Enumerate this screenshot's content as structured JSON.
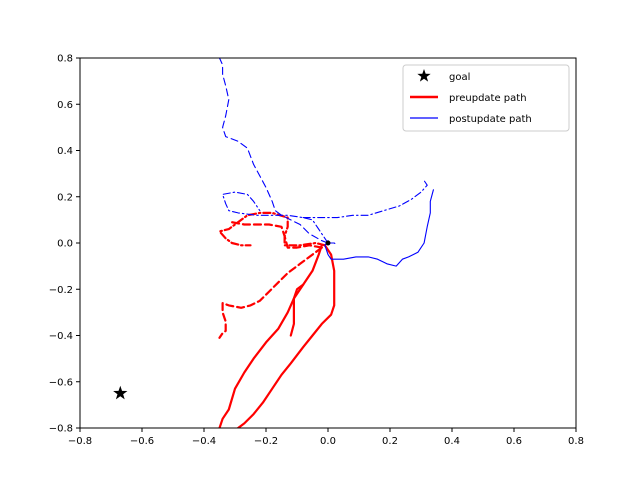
{
  "chart_data": {
    "type": "line",
    "title": "",
    "xlabel": "",
    "ylabel": "",
    "xlim": [
      -0.8,
      0.8
    ],
    "ylim": [
      -0.8,
      0.8
    ],
    "xticks": [
      -0.8,
      -0.6,
      -0.4,
      -0.2,
      0.0,
      0.2,
      0.4,
      0.6,
      0.8
    ],
    "yticks": [
      -0.8,
      -0.6,
      -0.4,
      -0.2,
      0.0,
      0.2,
      0.4,
      0.6,
      0.8
    ],
    "xtick_labels": [
      "−0.8",
      "−0.6",
      "−0.4",
      "−0.2",
      "0.0",
      "0.2",
      "0.4",
      "0.6",
      "0.8"
    ],
    "ytick_labels": [
      "−0.8",
      "−0.6",
      "−0.4",
      "−0.2",
      "0.0",
      "0.2",
      "0.4",
      "0.6",
      "0.8"
    ],
    "grid": false,
    "legend_position": "top-right",
    "legend": [
      {
        "label": "goal",
        "marker": "star",
        "color": "#000000"
      },
      {
        "label": "preupdate path",
        "style": "solid",
        "color": "#ff0000",
        "width": "thick"
      },
      {
        "label": "postupdate path",
        "style": "solid",
        "color": "#0000ff",
        "width": "thin"
      }
    ],
    "goal": {
      "x": -0.67,
      "y": -0.65
    },
    "start": {
      "x": 0.0,
      "y": 0.0
    },
    "series": [
      {
        "color": "#ff0000",
        "dash": "solid",
        "group": "preupdate",
        "points": [
          [
            -0.02,
            -0.01
          ],
          [
            -0.03,
            -0.05
          ],
          [
            -0.05,
            -0.12
          ],
          [
            -0.08,
            -0.18
          ],
          [
            -0.11,
            -0.24
          ],
          [
            -0.13,
            -0.3
          ],
          [
            -0.16,
            -0.37
          ],
          [
            -0.2,
            -0.43
          ],
          [
            -0.24,
            -0.5
          ],
          [
            -0.27,
            -0.56
          ],
          [
            -0.3,
            -0.63
          ],
          [
            -0.32,
            -0.72
          ],
          [
            -0.34,
            -0.76
          ],
          [
            -0.35,
            -0.8
          ]
        ]
      },
      {
        "color": "#ff0000",
        "dash": "solid",
        "group": "preupdate",
        "points": [
          [
            -0.01,
            -0.01
          ],
          [
            0.01,
            -0.05
          ],
          [
            0.02,
            -0.12
          ],
          [
            0.02,
            -0.2
          ],
          [
            0.02,
            -0.27
          ],
          [
            0.01,
            -0.31
          ],
          [
            -0.02,
            -0.35
          ],
          [
            -0.05,
            -0.4
          ],
          [
            -0.08,
            -0.45
          ],
          [
            -0.12,
            -0.52
          ],
          [
            -0.15,
            -0.57
          ],
          [
            -0.18,
            -0.63
          ],
          [
            -0.21,
            -0.69
          ],
          [
            -0.24,
            -0.74
          ],
          [
            -0.27,
            -0.78
          ],
          [
            -0.29,
            -0.8
          ]
        ]
      },
      {
        "color": "#ff0000",
        "dash": "solid",
        "group": "preupdate",
        "points": [
          [
            -0.08,
            -0.18
          ],
          [
            -0.1,
            -0.2
          ],
          [
            -0.11,
            -0.24
          ],
          [
            -0.11,
            -0.3
          ],
          [
            -0.11,
            -0.35
          ],
          [
            -0.12,
            -0.4
          ]
        ]
      },
      {
        "color": "#ff0000",
        "dash": "dashed",
        "group": "preupdate",
        "points": [
          [
            -0.02,
            -0.02
          ],
          [
            -0.05,
            -0.05
          ],
          [
            -0.09,
            -0.09
          ],
          [
            -0.13,
            -0.13
          ],
          [
            -0.16,
            -0.17
          ],
          [
            -0.19,
            -0.21
          ],
          [
            -0.22,
            -0.25
          ],
          [
            -0.25,
            -0.27
          ],
          [
            -0.28,
            -0.28
          ],
          [
            -0.32,
            -0.27
          ],
          [
            -0.34,
            -0.26
          ],
          [
            -0.34,
            -0.3
          ],
          [
            -0.33,
            -0.34
          ],
          [
            -0.33,
            -0.38
          ],
          [
            -0.34,
            -0.39
          ],
          [
            -0.35,
            -0.41
          ]
        ]
      },
      {
        "color": "#ff0000",
        "dash": "dashed",
        "group": "preupdate",
        "points": [
          [
            -0.02,
            -0.02
          ],
          [
            -0.06,
            -0.01
          ],
          [
            -0.1,
            -0.02
          ],
          [
            -0.13,
            -0.02
          ],
          [
            -0.14,
            0.03
          ],
          [
            -0.15,
            0.07
          ],
          [
            -0.19,
            0.08
          ],
          [
            -0.23,
            0.08
          ],
          [
            -0.27,
            0.08
          ],
          [
            -0.31,
            0.09
          ]
        ]
      },
      {
        "color": "#ff0000",
        "dash": "dashdot",
        "group": "preupdate",
        "points": [
          [
            -0.01,
            -0.01
          ],
          [
            -0.04,
            0.0
          ],
          [
            -0.09,
            -0.01
          ],
          [
            -0.14,
            -0.01
          ],
          [
            -0.14,
            0.03
          ],
          [
            -0.13,
            0.07
          ],
          [
            -0.13,
            0.11
          ],
          [
            -0.18,
            0.13
          ],
          [
            -0.22,
            0.13
          ],
          [
            -0.26,
            0.12
          ],
          [
            -0.3,
            0.08
          ],
          [
            -0.32,
            0.06
          ],
          [
            -0.35,
            0.05
          ],
          [
            -0.33,
            0.02
          ],
          [
            -0.31,
            0.0
          ],
          [
            -0.28,
            -0.01
          ],
          [
            -0.25,
            -0.01
          ]
        ]
      },
      {
        "color": "#0000ff",
        "dash": "solid",
        "group": "postupdate",
        "points": [
          [
            0.0,
            0.01
          ],
          [
            -0.01,
            -0.01
          ],
          [
            0.0,
            -0.05
          ],
          [
            0.01,
            -0.07
          ],
          [
            0.05,
            -0.07
          ],
          [
            0.09,
            -0.06
          ],
          [
            0.13,
            -0.06
          ],
          [
            0.16,
            -0.07
          ],
          [
            0.19,
            -0.09
          ],
          [
            0.22,
            -0.1
          ],
          [
            0.24,
            -0.07
          ],
          [
            0.26,
            -0.06
          ],
          [
            0.29,
            -0.04
          ],
          [
            0.31,
            0.0
          ],
          [
            0.32,
            0.07
          ],
          [
            0.33,
            0.13
          ],
          [
            0.33,
            0.18
          ],
          [
            0.34,
            0.23
          ]
        ]
      },
      {
        "color": "#0000ff",
        "dash": "dashdot",
        "group": "postupdate",
        "points": [
          [
            0.0,
            0.0
          ],
          [
            -0.02,
            0.04
          ],
          [
            -0.05,
            0.1
          ],
          [
            -0.08,
            0.11
          ],
          [
            -0.13,
            0.12
          ],
          [
            -0.18,
            0.12
          ],
          [
            -0.23,
            0.12
          ],
          [
            -0.29,
            0.13
          ],
          [
            -0.32,
            0.14
          ],
          [
            -0.33,
            0.17
          ],
          [
            -0.34,
            0.21
          ],
          [
            -0.3,
            0.22
          ],
          [
            -0.26,
            0.21
          ],
          [
            -0.24,
            0.18
          ],
          [
            -0.22,
            0.14
          ]
        ]
      },
      {
        "color": "#0000ff",
        "dash": "dashdot",
        "group": "postupdate",
        "points": [
          [
            -0.08,
            0.11
          ],
          [
            -0.03,
            0.11
          ],
          [
            0.03,
            0.11
          ],
          [
            0.08,
            0.12
          ],
          [
            0.13,
            0.12
          ],
          [
            0.18,
            0.14
          ],
          [
            0.23,
            0.16
          ],
          [
            0.27,
            0.19
          ],
          [
            0.3,
            0.22
          ],
          [
            0.32,
            0.25
          ],
          [
            0.31,
            0.27
          ]
        ]
      },
      {
        "color": "#0000ff",
        "dash": "dashed",
        "group": "postupdate",
        "points": [
          [
            0.0,
            0.0
          ],
          [
            -0.02,
            0.01
          ],
          [
            -0.06,
            0.04
          ],
          [
            -0.09,
            0.08
          ],
          [
            -0.12,
            0.1
          ],
          [
            -0.15,
            0.12
          ],
          [
            -0.17,
            0.14
          ],
          [
            -0.18,
            0.18
          ],
          [
            -0.2,
            0.24
          ],
          [
            -0.22,
            0.29
          ],
          [
            -0.24,
            0.34
          ],
          [
            -0.26,
            0.41
          ],
          [
            -0.29,
            0.44
          ],
          [
            -0.33,
            0.46
          ],
          [
            -0.34,
            0.5
          ],
          [
            -0.33,
            0.55
          ],
          [
            -0.32,
            0.62
          ],
          [
            -0.33,
            0.68
          ],
          [
            -0.34,
            0.73
          ],
          [
            -0.34,
            0.77
          ],
          [
            -0.35,
            0.8
          ]
        ]
      },
      {
        "color": "#0000ff",
        "dash": "dashed",
        "group": "postupdate",
        "points": [
          [
            0.0,
            0.0
          ],
          [
            0.02,
            0.0
          ],
          [
            0.03,
            -0.01
          ]
        ]
      }
    ]
  }
}
